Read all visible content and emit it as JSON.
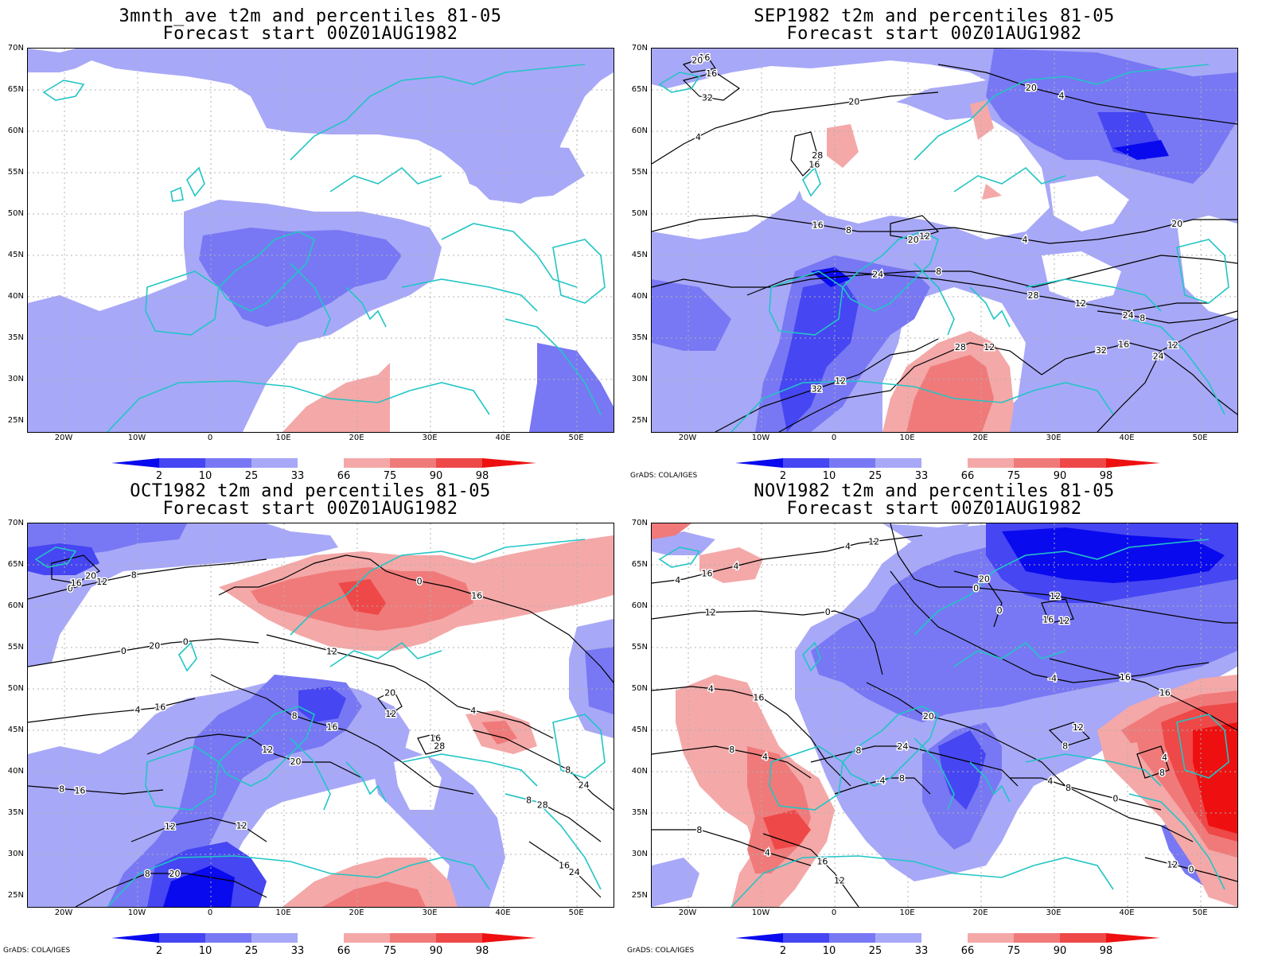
{
  "figure": {
    "colorbar": {
      "labels": [
        "2",
        "10",
        "25",
        "33",
        "66",
        "75",
        "90",
        "98"
      ],
      "colors": [
        "#0a0aee",
        "#4646f2",
        "#7878f4",
        "#a8a8f8",
        "#ffffff",
        "#f4a8a8",
        "#f07a7a",
        "#ee4848",
        "#ee1010"
      ]
    },
    "coastline_color": "#22c5c5",
    "credit": "GrADS: COLA/IGES",
    "lat_labels": [
      "70N",
      "65N",
      "60N",
      "55N",
      "50N",
      "45N",
      "40N",
      "35N",
      "30N",
      "25N"
    ],
    "lon_labels": [
      "20W",
      "10W",
      "0",
      "10E",
      "20E",
      "30E",
      "40E",
      "50E"
    ]
  },
  "panels": [
    {
      "title": "3mnth_ave t2m and percentiles 81-05",
      "subtitle": "Forecast start 00Z01AUG1982",
      "credit": "",
      "contour_labels": []
    },
    {
      "title": "SEP1982 t2m and percentiles 81-05",
      "subtitle": "Forecast start 00Z01AUG1982",
      "credit": "GrADS: COLA/IGES",
      "contour_labels": [
        "4",
        "4",
        "8",
        "4",
        "8",
        "12",
        "8",
        "12",
        "12",
        "16",
        "12",
        "16",
        "16",
        "20",
        "16",
        "20",
        "20",
        "16",
        "20",
        "24",
        "28",
        "24",
        "32",
        "28",
        "32",
        "24",
        "32",
        "28",
        "12",
        "20"
      ]
    },
    {
      "title": "OCT1982 t2m and percentiles 81-05",
      "subtitle": "Forecast start 00Z01AUG1982",
      "credit": "GrADS: COLA/IGES",
      "contour_labels": [
        "0",
        "0",
        "4",
        "8",
        "0",
        "4",
        "8",
        "12",
        "12",
        "8",
        "8",
        "8",
        "16",
        "12",
        "16",
        "20",
        "12",
        "20",
        "16",
        "16",
        "16",
        "12",
        "16",
        "20",
        "12",
        "20",
        "24",
        "28",
        "24",
        "20",
        "28",
        "16",
        "8",
        "0"
      ]
    },
    {
      "title": "NOV1982 t2m and percentiles 81-05",
      "subtitle": "Forecast start 00Z01AUG1982",
      "credit": "GrADS: COLA/IGES",
      "contour_labels": [
        "4",
        "4",
        "0",
        "4",
        "8",
        "4",
        "0",
        "-4",
        "0",
        "4",
        "8",
        "8",
        "-4",
        "0",
        "12",
        "16",
        "8",
        "4",
        "12",
        "16",
        "12",
        "12",
        "16",
        "4",
        "8",
        "12",
        "16",
        "20",
        "16",
        "20",
        "24",
        "8",
        "4",
        "0",
        "12",
        "12",
        "8",
        "16",
        "4"
      ]
    }
  ]
}
